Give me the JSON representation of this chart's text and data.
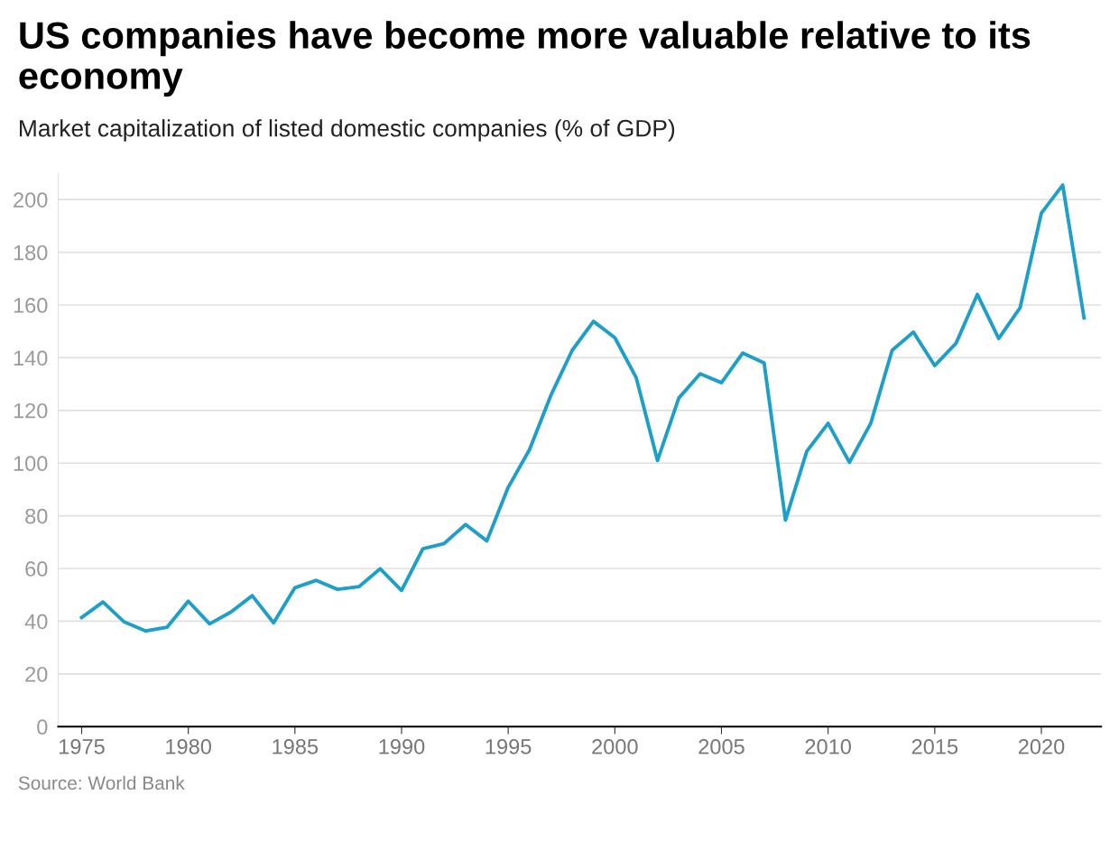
{
  "chart_data": {
    "type": "line",
    "title": "US companies have become more valuable relative to its economy",
    "subtitle": "Market capitalization of listed domestic companies (% of GDP)",
    "x": [
      1975,
      1976,
      1977,
      1978,
      1979,
      1980,
      1981,
      1982,
      1983,
      1984,
      1985,
      1986,
      1987,
      1988,
      1989,
      1990,
      1991,
      1992,
      1993,
      1994,
      1995,
      1996,
      1997,
      1998,
      1999,
      2000,
      2001,
      2002,
      2003,
      2004,
      2005,
      2006,
      2007,
      2008,
      2009,
      2010,
      2011,
      2012,
      2013,
      2014,
      2015,
      2016,
      2017,
      2018,
      2019,
      2020,
      2021,
      2022
    ],
    "series": [
      {
        "color": "#1d9fc9",
        "values": [
          41.4,
          47.3,
          39.7,
          36.3,
          37.7,
          47.6,
          39.0,
          43.5,
          49.7,
          39.4,
          52.7,
          55.5,
          52.1,
          53.1,
          59.9,
          51.7,
          67.5,
          69.5,
          76.7,
          70.5,
          90.8,
          105.1,
          125.7,
          142.8,
          153.8,
          147.6,
          132.5,
          101.0,
          124.7,
          133.9,
          130.5,
          141.8,
          138.0,
          78.4,
          104.5,
          115.1,
          100.3,
          115.1,
          142.8,
          149.7,
          137.0,
          145.5,
          164.0,
          147.3,
          158.9,
          194.9,
          205.5,
          155.1
        ]
      }
    ],
    "xlim": [
      1973.9,
      2022.8
    ],
    "ylim": [
      0,
      210
    ],
    "xticks": [
      1975,
      1980,
      1985,
      1990,
      1995,
      2000,
      2005,
      2010,
      2015,
      2020
    ],
    "yticks": [
      0,
      20,
      40,
      60,
      80,
      100,
      120,
      140,
      160,
      180,
      200
    ],
    "grid": "y",
    "annotations": [
      "Source: World Bank"
    ]
  }
}
